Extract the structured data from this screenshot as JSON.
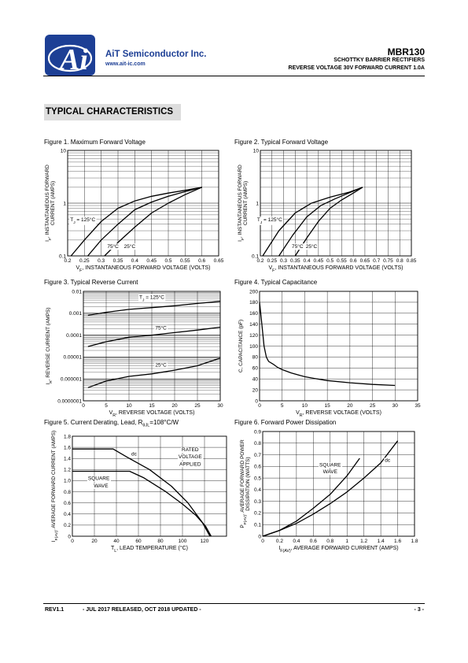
{
  "header": {
    "company": "AiT Semiconductor Inc.",
    "website": "www.ait-ic.com",
    "logo_text": "Ai",
    "part_number": "MBR130",
    "subtitle1": "SCHOTTKY BARRIER RECTIFIERS",
    "subtitle2": "REVERSE VOLTAGE 30V FORWARD CURRENT 1.0A"
  },
  "section_title": "TYPICAL CHARACTERISTICS",
  "figures": {
    "fig1": "Figure 1. Maximum Forward Voltage",
    "fig2": "Figure 2. Typical Forward Voltage",
    "fig3": "Figure 3. Typical Reverse Current",
    "fig4": "Figure 4. Typical Capacitance",
    "fig5": "Figure 5. Current Derating, Lead, R",
    "fig5_sub": "θJL",
    "fig5_tail": "=108°C/W",
    "fig6": "Figure 6. Forward Power Dissipation"
  },
  "footer": {
    "rev": "REV1.1",
    "release": "- JUL 2017 RELEASED, OCT 2018 UPDATED -",
    "page": "- 3 -"
  },
  "chart_data": [
    {
      "id": "fig1",
      "type": "line",
      "xscale": "linear",
      "yscale": "log",
      "xlim": [
        0.2,
        0.65
      ],
      "ylim": [
        0.1,
        10
      ],
      "xticks": [
        "0.2",
        "0.25",
        "0.3",
        "0.35",
        "0.4",
        "0.45",
        "0.5",
        "0.55",
        "0.6",
        "0.65"
      ],
      "yticks": [
        "0.1",
        "1",
        "10"
      ],
      "xlabel_pre": "V",
      "xlabel_sub": "F",
      "xlabel_post": ", INSTANTANEOUS FORWARD VOLTAGE (VOLTS)",
      "ylabel_pre": "I",
      "ylabel_sub": "F",
      "ylabel_post": ", INSTANTANEOUS FORWARD",
      "ylabel2": "CURRENT (AMPS)",
      "series": [
        {
          "name": "T_J = 125°C",
          "points": [
            [
              0.21,
              0.1
            ],
            [
              0.25,
              0.2
            ],
            [
              0.3,
              0.45
            ],
            [
              0.35,
              0.8
            ],
            [
              0.4,
              1.1
            ],
            [
              0.45,
              1.35
            ],
            [
              0.5,
              1.55
            ],
            [
              0.55,
              1.75
            ],
            [
              0.6,
              2.0
            ]
          ]
        },
        {
          "name": "75°C",
          "points": [
            [
              0.26,
              0.1
            ],
            [
              0.3,
              0.2
            ],
            [
              0.35,
              0.4
            ],
            [
              0.4,
              0.75
            ],
            [
              0.45,
              1.05
            ],
            [
              0.5,
              1.35
            ],
            [
              0.55,
              1.65
            ],
            [
              0.6,
              2.0
            ]
          ]
        },
        {
          "name": "25°C",
          "points": [
            [
              0.31,
              0.1
            ],
            [
              0.35,
              0.18
            ],
            [
              0.4,
              0.35
            ],
            [
              0.45,
              0.65
            ],
            [
              0.5,
              1.0
            ],
            [
              0.55,
              1.45
            ],
            [
              0.6,
              2.0
            ]
          ]
        }
      ],
      "annotations": [
        {
          "t": "T",
          "sub": "J",
          "rest": " = 125°C",
          "x": 0.245,
          "y": 0.45
        },
        {
          "t": "75°C",
          "x": 0.335,
          "y": 0.14
        },
        {
          "t": "25°C",
          "x": 0.385,
          "y": 0.14
        }
      ]
    },
    {
      "id": "fig2",
      "type": "line",
      "xscale": "linear",
      "yscale": "log",
      "xlim": [
        0.2,
        0.85
      ],
      "ylim": [
        0.1,
        10
      ],
      "xticks": [
        "0.2",
        "0.25",
        "0.3",
        "0.35",
        "0.4",
        "0.45",
        "0.5",
        "0.55",
        "0.6",
        "0.65",
        "0.7",
        "0.75",
        "0.8",
        "0.85"
      ],
      "xticklabels": [
        "0.2",
        "0.25",
        "0.3",
        "0.35",
        "0.4",
        "0.45",
        "0.5",
        "0.55",
        "0.6",
        "0.65",
        "0.7",
        "0.75",
        "0.8",
        "0.85"
      ],
      "yticks": [
        "0.1",
        "1",
        "10"
      ],
      "xlabel_pre": "V",
      "xlabel_sub": "F",
      "xlabel_post": ", INSTANTANEOUS FORWARD VOLTAGE (VOLTS)",
      "ylabel_pre": "I",
      "ylabel_sub": "F",
      "ylabel_post": ", INSTANTANEOUS FORWARD",
      "ylabel2": "CURRENT (AMPS)",
      "series": [
        {
          "name": "T_J = 125°C",
          "points": [
            [
              0.21,
              0.1
            ],
            [
              0.28,
              0.3
            ],
            [
              0.35,
              0.65
            ],
            [
              0.42,
              1.0
            ],
            [
              0.5,
              1.3
            ],
            [
              0.58,
              1.6
            ],
            [
              0.64,
              2.0
            ]
          ]
        },
        {
          "name": "75°C",
          "points": [
            [
              0.28,
              0.1
            ],
            [
              0.34,
              0.25
            ],
            [
              0.4,
              0.55
            ],
            [
              0.46,
              0.9
            ],
            [
              0.52,
              1.2
            ],
            [
              0.58,
              1.55
            ],
            [
              0.64,
              2.0
            ]
          ]
        },
        {
          "name": "25°C",
          "points": [
            [
              0.35,
              0.1
            ],
            [
              0.4,
              0.22
            ],
            [
              0.45,
              0.45
            ],
            [
              0.5,
              0.8
            ],
            [
              0.55,
              1.15
            ],
            [
              0.6,
              1.55
            ],
            [
              0.64,
              2.0
            ]
          ]
        }
      ],
      "annotations": [
        {
          "t": "T",
          "sub": "J",
          "rest": " = 125°C",
          "x": 0.24,
          "y": 0.45
        },
        {
          "t": "75°C",
          "x": 0.36,
          "y": 0.14
        },
        {
          "t": "25°C",
          "x": 0.42,
          "y": 0.14
        }
      ]
    },
    {
      "id": "fig3",
      "type": "line",
      "xscale": "linear",
      "yscale": "log",
      "xlim": [
        0,
        30
      ],
      "ylim": [
        1e-07,
        0.01
      ],
      "xticks": [
        "0",
        "5",
        "10",
        "15",
        "20",
        "25",
        "30"
      ],
      "yticks": [
        "0.0000001",
        "0.000001",
        "0.00001",
        "0.0001",
        "0.001",
        "0.01"
      ],
      "xlabel_pre": "V",
      "xlabel_sub": "R",
      "xlabel_post": ", REVERSE VOLTAGE (VOLTS)",
      "ylabel_pre": "I",
      "ylabel_sub": "R",
      "ylabel_post": ", REVERSE CURRENT (AMPS)",
      "series": [
        {
          "name": "T_J = 125°C",
          "points": [
            [
              1,
              0.0008
            ],
            [
              5,
              0.0011
            ],
            [
              10,
              0.0015
            ],
            [
              15,
              0.0018
            ],
            [
              20,
              0.0022
            ],
            [
              25,
              0.0028
            ],
            [
              30,
              0.0035
            ]
          ]
        },
        {
          "name": "75°C",
          "points": [
            [
              1,
              3e-05
            ],
            [
              5,
              5e-05
            ],
            [
              10,
              8e-05
            ],
            [
              15,
              0.0001
            ],
            [
              20,
              0.00013
            ],
            [
              25,
              0.00017
            ],
            [
              30,
              0.00023
            ]
          ]
        },
        {
          "name": "25°C",
          "points": [
            [
              1,
              4e-07
            ],
            [
              5,
              8e-07
            ],
            [
              10,
              1.3e-06
            ],
            [
              15,
              1.7e-06
            ],
            [
              20,
              2.5e-06
            ],
            [
              25,
              4e-06
            ],
            [
              30,
              9e-06
            ]
          ]
        }
      ],
      "annotations": [
        {
          "t": "T",
          "sub": "J",
          "rest": " = 125°C",
          "x": 15,
          "y": 0.0045
        },
        {
          "t": "75°C",
          "x": 17,
          "y": 0.00018
        },
        {
          "t": "25°C",
          "x": 17,
          "y": 3.6e-06
        }
      ]
    },
    {
      "id": "fig4",
      "type": "line",
      "xscale": "linear",
      "yscale": "linear",
      "xlim": [
        0,
        35
      ],
      "ylim": [
        0,
        200
      ],
      "xticks": [
        "0",
        "5",
        "10",
        "15",
        "20",
        "25",
        "30",
        "35"
      ],
      "yticks": [
        "0",
        "20",
        "40",
        "60",
        "80",
        "100",
        "120",
        "140",
        "160",
        "180",
        "200"
      ],
      "xlabel_pre": "V",
      "xlabel_sub": "R",
      "xlabel_post": ", REVERSE VOLTAGE (VOLTS)",
      "ylabel_pre": "C, CAPACITANCE (pF)",
      "ylabel_sub": "",
      "ylabel_post": "",
      "series": [
        {
          "name": "C",
          "points": [
            [
              0,
              180
            ],
            [
              0.5,
              140
            ],
            [
              1,
              100
            ],
            [
              1.5,
              80
            ],
            [
              2,
              72
            ],
            [
              3,
              67
            ],
            [
              4,
              61
            ],
            [
              5,
              57
            ],
            [
              7,
              51
            ],
            [
              10,
              44
            ],
            [
              12,
              41
            ],
            [
              15,
              37
            ],
            [
              20,
              33
            ],
            [
              25,
              30
            ],
            [
              30,
              28
            ]
          ]
        }
      ],
      "annotations": []
    },
    {
      "id": "fig5",
      "type": "line",
      "xscale": "linear",
      "yscale": "linear",
      "xlim": [
        0,
        140
      ],
      "ylim": [
        0,
        1.8
      ],
      "xticks": [
        "0",
        "20",
        "40",
        "60",
        "80",
        "100",
        "120"
      ],
      "xtickvals": [
        0,
        20,
        40,
        60,
        80,
        100,
        120
      ],
      "yticks": [
        "0",
        "0.2",
        "0.4",
        "0.6",
        "0.8",
        "1.0",
        "1.2",
        "1.4",
        "1.6",
        "1.8"
      ],
      "xlabel_pre": "T",
      "xlabel_sub": "L",
      "xlabel_post": ", LEAD TEMPERATURE (°C)",
      "ylabel_pre": "I",
      "ylabel_sub": "F(AV)",
      "ylabel_post": ", AVERAGE FORWARD CURRENT (AMPS)",
      "series": [
        {
          "name": "dc",
          "points": [
            [
              0,
              1.57
            ],
            [
              37,
              1.57
            ],
            [
              50,
              1.42
            ],
            [
              70,
              1.2
            ],
            [
              90,
              0.9
            ],
            [
              105,
              0.6
            ],
            [
              118,
              0.25
            ],
            [
              125,
              0
            ]
          ]
        },
        {
          "name": "SQUARE WAVE",
          "points": [
            [
              0,
              1.17
            ],
            [
              52,
              1.17
            ],
            [
              65,
              1.05
            ],
            [
              85,
              0.8
            ],
            [
              100,
              0.58
            ],
            [
              112,
              0.38
            ],
            [
              121,
              0.18
            ],
            [
              126,
              0
            ]
          ]
        }
      ],
      "annotations": [
        {
          "t": "dc",
          "x": 56,
          "y": 1.45
        },
        {
          "t": "SQUARE",
          "x": 24,
          "y": 1.01
        },
        {
          "t": "WAVE",
          "x": 26,
          "y": 0.88
        },
        {
          "t": "RATED",
          "x": 107,
          "y": 1.53
        },
        {
          "t": "VOLTAGE",
          "x": 107,
          "y": 1.4
        },
        {
          "t": "APPLIED",
          "x": 107,
          "y": 1.27
        }
      ]
    },
    {
      "id": "fig6",
      "type": "line",
      "xscale": "linear",
      "yscale": "linear",
      "xlim": [
        0,
        1.8
      ],
      "ylim": [
        0,
        0.9
      ],
      "xticks": [
        "0",
        "0.2",
        "0.4",
        "0.6",
        "0.8",
        "1",
        "1.2",
        "1.4",
        "1.6",
        "1.8"
      ],
      "yticks": [
        "0",
        "0.1",
        "0.2",
        "0.3",
        "0.4",
        "0.5",
        "0.6",
        "0.7",
        "0.8",
        "0.9"
      ],
      "xlabel_pre": "I",
      "xlabel_sub": "F(AV)",
      "xlabel_post": ", AVERAGE FORWARD CURRENT (AMPS)",
      "ylabel_pre": "P",
      "ylabel_sub": "F(AV)",
      "ylabel_post": ", AVERAGE FORWARD POWER",
      "ylabel2": "DISSIPATION (WATTS)",
      "series": [
        {
          "name": "SQUARE WAVE",
          "points": [
            [
              0,
              0
            ],
            [
              0.2,
              0.05
            ],
            [
              0.4,
              0.13
            ],
            [
              0.6,
              0.24
            ],
            [
              0.8,
              0.36
            ],
            [
              1.0,
              0.52
            ],
            [
              1.15,
              0.67
            ]
          ]
        },
        {
          "name": "dc",
          "points": [
            [
              0,
              0
            ],
            [
              0.2,
              0.05
            ],
            [
              0.4,
              0.11
            ],
            [
              0.6,
              0.19
            ],
            [
              0.8,
              0.28
            ],
            [
              1.0,
              0.38
            ],
            [
              1.2,
              0.5
            ],
            [
              1.4,
              0.63
            ],
            [
              1.6,
              0.82
            ]
          ]
        }
      ],
      "annotations": [
        {
          "t": "SQUARE",
          "x": 0.8,
          "y": 0.6
        },
        {
          "t": "WAVE",
          "x": 0.8,
          "y": 0.54
        },
        {
          "t": "dc",
          "x": 1.48,
          "y": 0.64
        }
      ]
    }
  ]
}
